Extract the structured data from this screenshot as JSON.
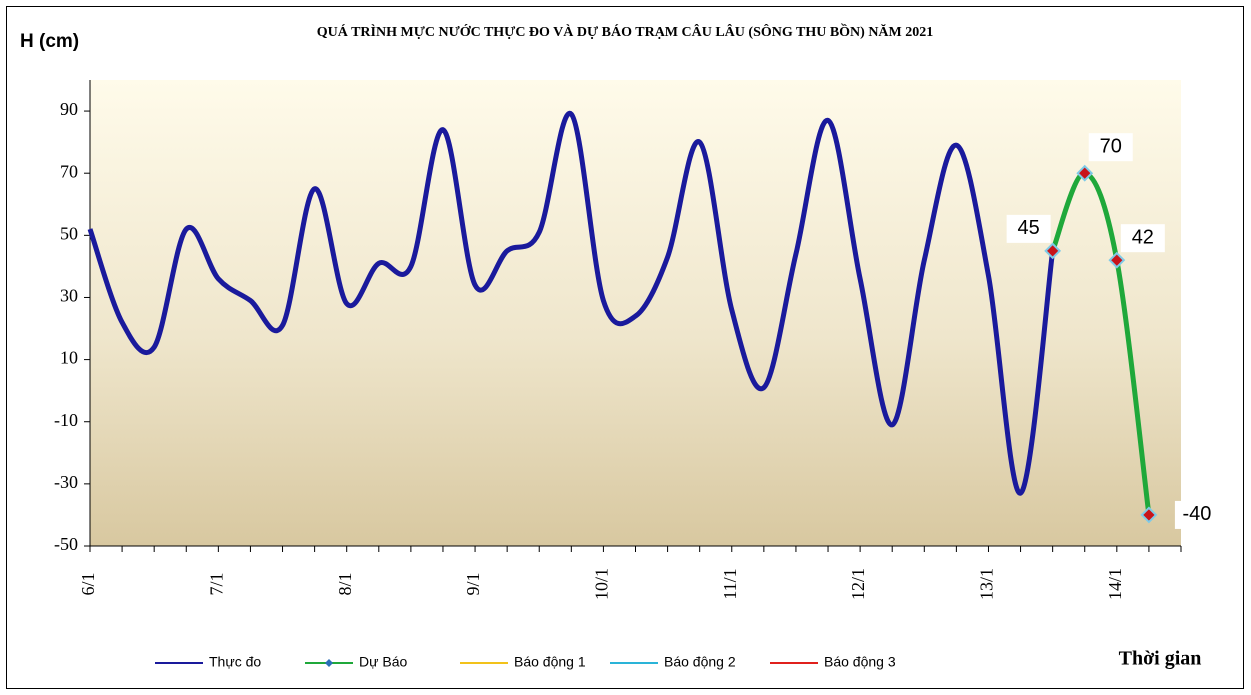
{
  "chart_data": {
    "type": "line",
    "title": "QUÁ TRÌNH MỰC NƯỚC THỰC ĐO VÀ DỰ BÁO TRẠM CÂU LÂU (SÔNG THU BỒN) NĂM 2021",
    "y_label": "H (cm)",
    "x_label": "Thời gian",
    "categories": [
      "6/1",
      null,
      null,
      null,
      "7/1",
      null,
      null,
      null,
      "8/1",
      null,
      null,
      null,
      "9/1",
      null,
      null,
      null,
      "10/1",
      null,
      null,
      null,
      "11/1",
      null,
      null,
      null,
      "12/1",
      null,
      null,
      null,
      "13/1",
      null,
      null,
      null,
      "14/1",
      null,
      null
    ],
    "series": [
      {
        "name": "Thực đo",
        "color": "#1a1a9c",
        "values": [
          52,
          22,
          14,
          52,
          36,
          29,
          21,
          65,
          28,
          41,
          40,
          84,
          34,
          45,
          51,
          89,
          29,
          24,
          43,
          80,
          26,
          1,
          44,
          87,
          36,
          -11,
          42,
          79,
          37,
          -33,
          45,
          null,
          null,
          null,
          null
        ]
      },
      {
        "name": "Dự Báo",
        "color": "#1fa83a",
        "values": [
          null,
          null,
          null,
          null,
          null,
          null,
          null,
          null,
          null,
          null,
          null,
          null,
          null,
          null,
          null,
          null,
          null,
          null,
          null,
          null,
          null,
          null,
          null,
          null,
          null,
          null,
          null,
          null,
          null,
          null,
          45,
          70,
          42,
          -40,
          null
        ]
      },
      {
        "name": "Báo động 1",
        "color": "#f2c21a",
        "values": [
          null,
          null,
          null,
          null,
          null,
          null,
          null,
          null,
          null,
          null,
          null,
          null,
          null,
          null,
          null,
          null,
          null,
          null,
          null,
          null,
          null,
          null,
          null,
          null,
          null,
          null,
          null,
          null,
          null,
          null,
          null,
          null,
          null,
          null,
          null
        ]
      },
      {
        "name": "Báo động 2",
        "color": "#2ab4d8",
        "values": [
          null,
          null,
          null,
          null,
          null,
          null,
          null,
          null,
          null,
          null,
          null,
          null,
          null,
          null,
          null,
          null,
          null,
          null,
          null,
          null,
          null,
          null,
          null,
          null,
          null,
          null,
          null,
          null,
          null,
          null,
          null,
          null,
          null,
          null,
          null
        ]
      },
      {
        "name": "Báo động 3",
        "color": "#e0201c",
        "values": [
          null,
          null,
          null,
          null,
          null,
          null,
          null,
          null,
          null,
          null,
          null,
          null,
          null,
          null,
          null,
          null,
          null,
          null,
          null,
          null,
          null,
          null,
          null,
          null,
          null,
          null,
          null,
          null,
          null,
          null,
          null,
          null,
          null,
          null,
          null
        ]
      }
    ],
    "ylim": [
      -50,
      100
    ],
    "yticks": [
      -50,
      -30,
      -10,
      10,
      30,
      50,
      70,
      90
    ]
  }
}
